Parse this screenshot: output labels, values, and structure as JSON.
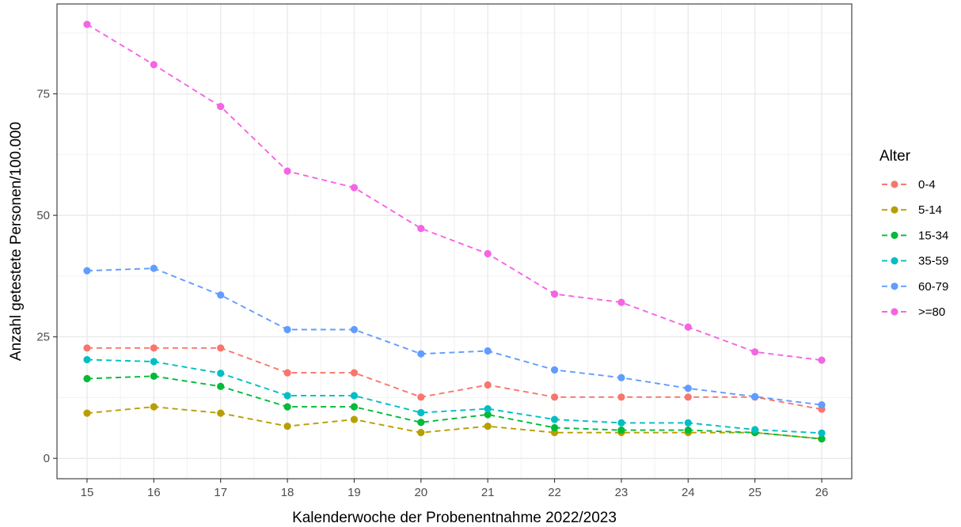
{
  "chart_data": {
    "type": "line",
    "title": "",
    "xlabel": "Kalenderwoche der Probenentnahme 2022/2023",
    "ylabel": "Anzahl getestete Personen/100.000",
    "x": [
      15,
      16,
      17,
      18,
      19,
      20,
      21,
      22,
      23,
      24,
      25,
      26
    ],
    "xlim": [
      14.55,
      26.45
    ],
    "ylim": [
      -4.2,
      93.5
    ],
    "yticks": [
      0,
      25,
      50,
      75
    ],
    "grid": true,
    "line_style": "dashed",
    "legend": {
      "title": "Alter",
      "position": "right"
    },
    "series": [
      {
        "name": "0-4",
        "color": "#F8766D",
        "values": [
          22.7,
          22.7,
          22.7,
          17.6,
          17.6,
          12.6,
          15.1,
          12.6,
          12.6,
          12.6,
          12.6,
          10.1
        ]
      },
      {
        "name": "5-14",
        "color": "#B79F00",
        "values": [
          9.3,
          10.6,
          9.3,
          6.6,
          8.0,
          5.3,
          6.6,
          5.3,
          5.3,
          5.3,
          5.3,
          4.0
        ]
      },
      {
        "name": "15-34",
        "color": "#00BA38",
        "values": [
          16.4,
          16.9,
          14.8,
          10.6,
          10.6,
          7.4,
          9.0,
          6.3,
          5.8,
          5.8,
          5.3,
          4.0
        ]
      },
      {
        "name": "35-59",
        "color": "#00BFC4",
        "values": [
          20.3,
          19.9,
          17.5,
          12.9,
          12.9,
          9.4,
          10.2,
          8.0,
          7.3,
          7.3,
          5.9,
          5.2
        ]
      },
      {
        "name": "60-79",
        "color": "#619CFF",
        "values": [
          38.6,
          39.1,
          33.6,
          26.5,
          26.5,
          21.5,
          22.1,
          18.2,
          16.6,
          14.4,
          12.7,
          11.0
        ]
      },
      {
        "name": ">=80",
        "color": "#F564E3",
        "values": [
          89.3,
          81.0,
          72.4,
          59.1,
          55.7,
          47.3,
          42.1,
          33.8,
          32.1,
          27.0,
          21.9,
          20.2
        ]
      }
    ]
  }
}
